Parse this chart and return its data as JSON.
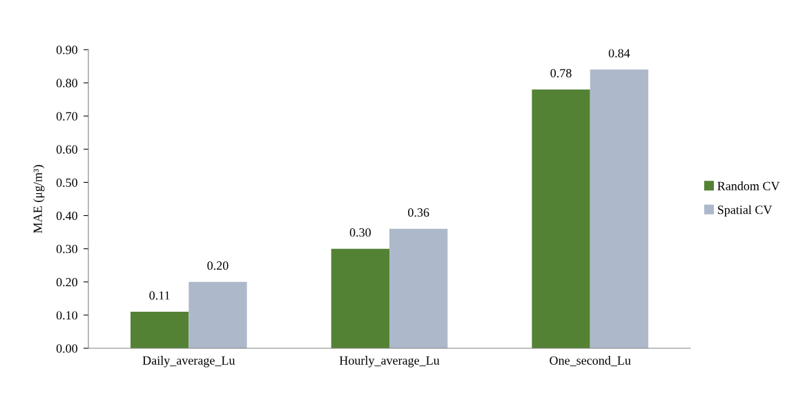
{
  "chart_data": {
    "type": "bar",
    "ylabel": "MAE (μg/m³)",
    "categories": [
      "Daily_average_Lu",
      "Hourly_average_Lu",
      "One_second_Lu"
    ],
    "series": [
      {
        "name": "Random CV",
        "color": "#548235",
        "values": [
          0.11,
          0.3,
          0.78
        ],
        "value_labels": [
          "0.11",
          "0.30",
          "0.78"
        ]
      },
      {
        "name": "Spatial CV",
        "color": "#adb9ca",
        "values": [
          0.2,
          0.36,
          0.84
        ],
        "value_labels": [
          "0.20",
          "0.36",
          "0.84"
        ]
      }
    ],
    "ylim": [
      0,
      0.9
    ],
    "yticks": [
      {
        "value": 0,
        "label": "0.00"
      },
      {
        "value": 0.1,
        "label": "0.10"
      },
      {
        "value": 0.2,
        "label": "0.20"
      },
      {
        "value": 0.3,
        "label": "0.30"
      },
      {
        "value": 0.4,
        "label": "0.40"
      },
      {
        "value": 0.5,
        "label": "0.50"
      },
      {
        "value": 0.6,
        "label": "0.60"
      },
      {
        "value": 0.7,
        "label": "0.70"
      },
      {
        "value": 0.8,
        "label": "0.80"
      },
      {
        "value": 0.9,
        "label": "0.90"
      }
    ],
    "grid": false,
    "legend": "right"
  }
}
